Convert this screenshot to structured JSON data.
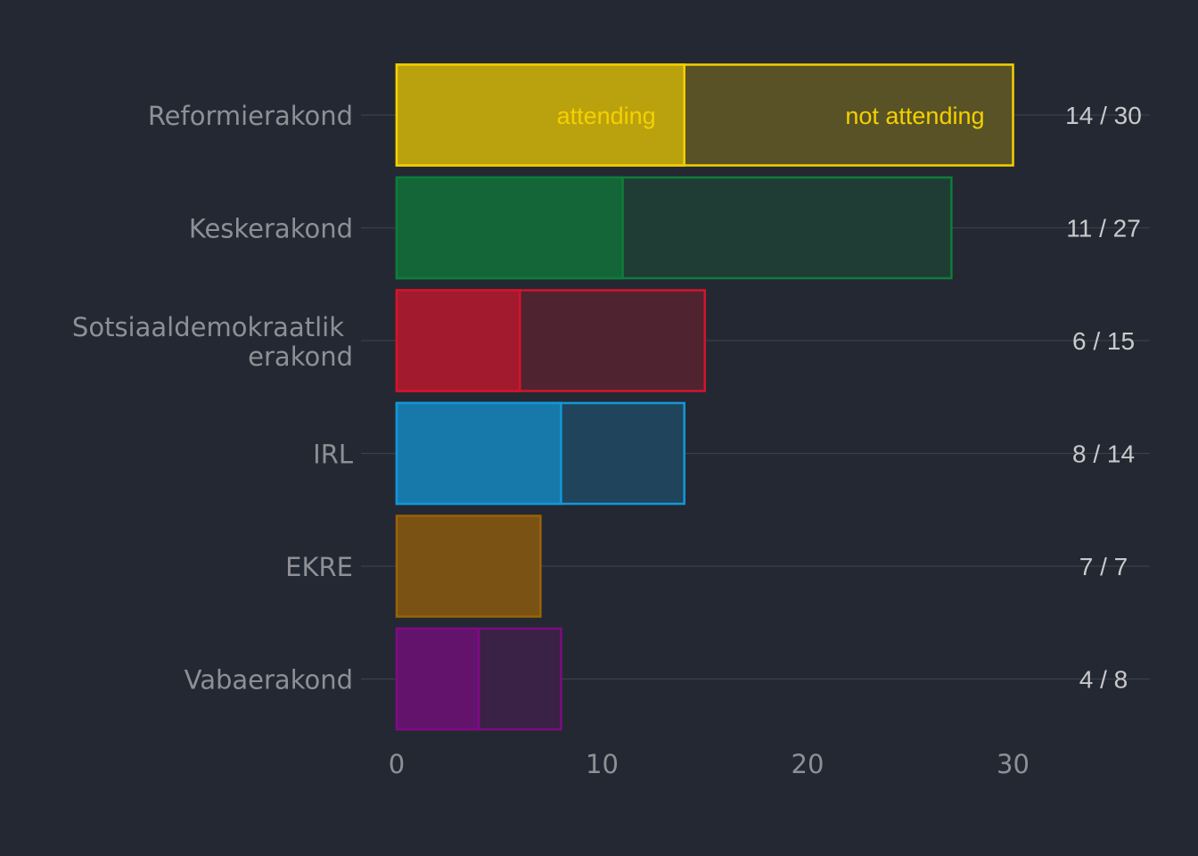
{
  "chart_data": {
    "type": "bar",
    "orientation": "horizontal",
    "stacked": true,
    "categories": [
      "Reformierakond",
      "Keskerakond",
      "Sotsiaaldemokraatlik erakond",
      "IRL",
      "EKRE",
      "Vabaerakond"
    ],
    "category_lines": [
      [
        "Reformierakond"
      ],
      [
        "Keskerakond"
      ],
      [
        "Sotsiaaldemokraatlik",
        "erakond"
      ],
      [
        "IRL"
      ],
      [
        "EKRE"
      ],
      [
        "Vabaerakond"
      ]
    ],
    "series": [
      {
        "name": "attending",
        "values": [
          14,
          11,
          6,
          8,
          7,
          4
        ]
      },
      {
        "name": "not attending",
        "values": [
          16,
          16,
          9,
          6,
          0,
          4
        ]
      }
    ],
    "totals": [
      30,
      27,
      15,
      14,
      7,
      8
    ],
    "count_labels": [
      "14 / 30",
      "11 / 27",
      "6 / 15",
      "8 / 14",
      "7 / 7",
      "4 / 8"
    ],
    "colors": [
      "#f5d000",
      "#0e7d3a",
      "#d3142c",
      "#1298d8",
      "#9a6308",
      "#7d0b82"
    ],
    "xticks": [
      0,
      10,
      20,
      30
    ],
    "xlim": [
      0,
      36
    ],
    "grid": true,
    "legend": "inline in first bar",
    "title": "",
    "xlabel": "",
    "ylabel": ""
  }
}
